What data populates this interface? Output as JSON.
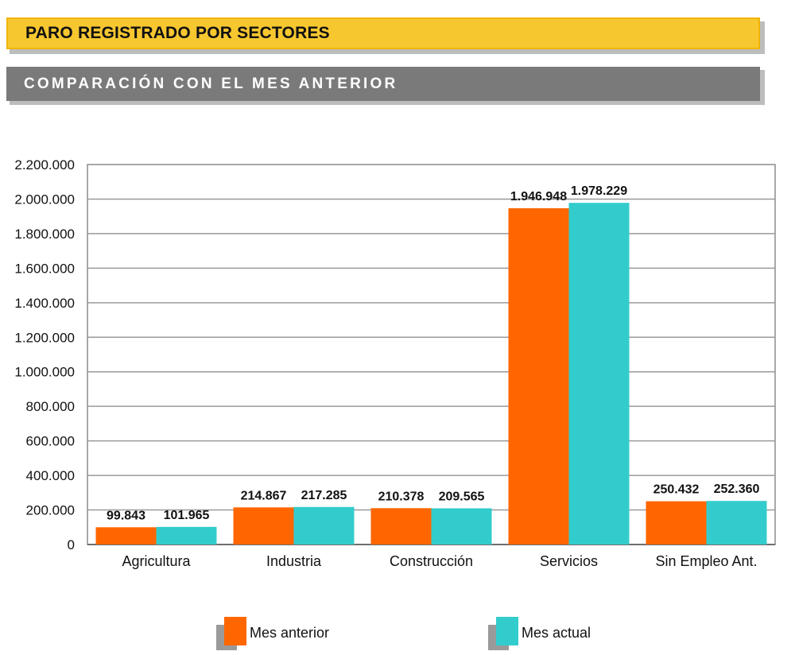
{
  "header": {
    "title": "PARO REGISTRADO POR SECTORES",
    "subtitle": "COMPARACIÓN CON EL MES ANTERIOR"
  },
  "chart_data": {
    "type": "bar",
    "categories": [
      "Agricultura",
      "Industria",
      "Construcción",
      "Servicios",
      "Sin Empleo Ant."
    ],
    "series": [
      {
        "name": "Mes anterior",
        "color": "#ff6600",
        "values": [
          99843,
          214867,
          210378,
          1946948,
          250432
        ],
        "labels": [
          "99.843",
          "214.867",
          "210.378",
          "1.946.948",
          "250.432"
        ]
      },
      {
        "name": "Mes actual",
        "color": "#33cccc",
        "values": [
          101965,
          217285,
          209565,
          1978229,
          252360
        ],
        "labels": [
          "101.965",
          "217.285",
          "209.565",
          "1.978.229",
          "252.360"
        ]
      }
    ],
    "yticks": [
      0,
      200000,
      400000,
      600000,
      800000,
      1000000,
      1200000,
      1400000,
      1600000,
      1800000,
      2000000,
      2200000
    ],
    "ytick_labels": [
      "0",
      "200.000",
      "400.000",
      "600.000",
      "800.000",
      "1.000.000",
      "1.200.000",
      "1.400.000",
      "1.600.000",
      "1.800.000",
      "2.000.000",
      "2.200.000"
    ],
    "ylim": [
      0,
      2200000
    ],
    "grid": true,
    "legend_position": "bottom"
  }
}
